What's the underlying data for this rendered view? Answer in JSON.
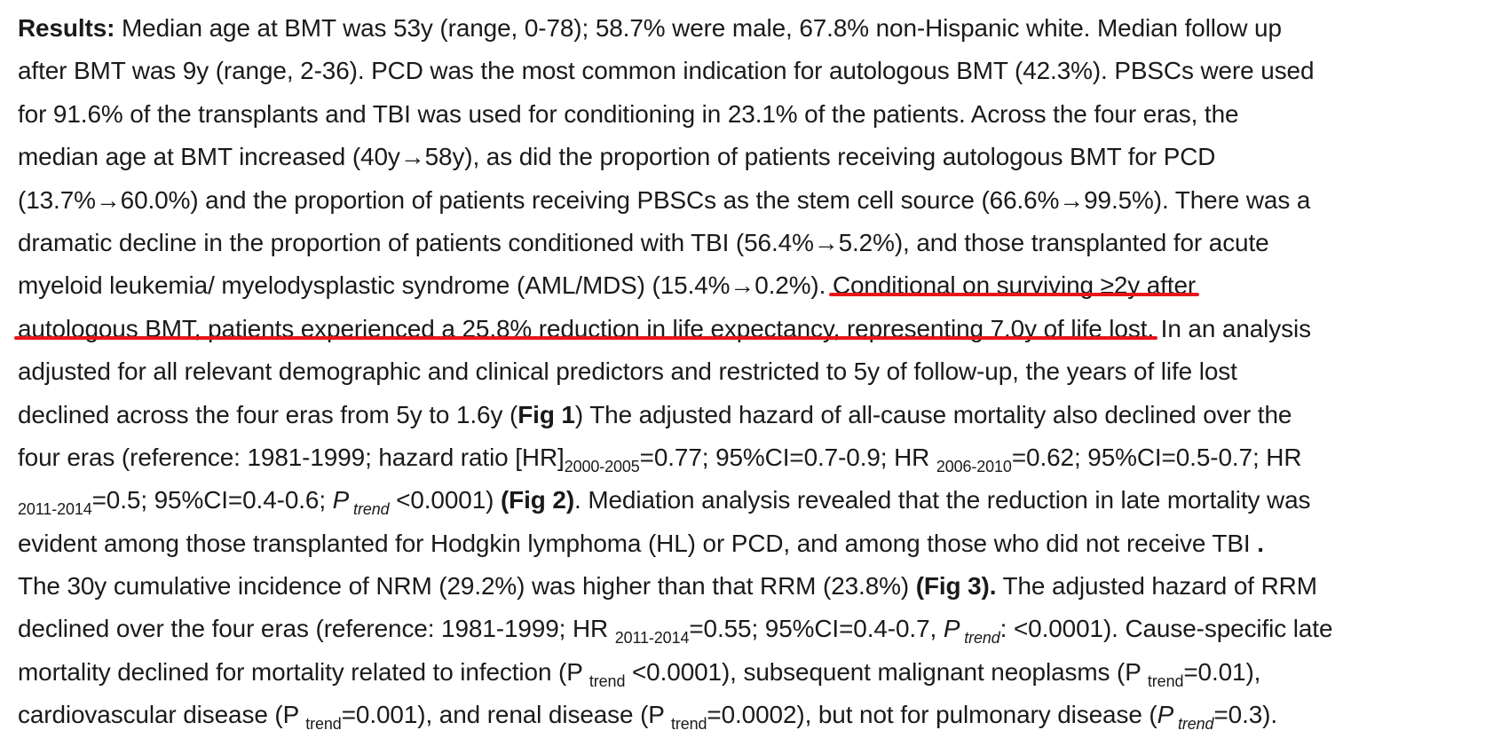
{
  "lines": [
    {
      "t1": "Results:",
      "t2": " Median age at BMT was 53y (range, 0-78); 58.7% were male, 67.8% non-Hispanic white. Median follow up"
    },
    {
      "t1": "after BMT was 9y (range, 2-36). PCD was the most common indication for autologous BMT (42.3%). PBSCs were used"
    },
    {
      "t1": "for 91.6% of the transplants and TBI was used for conditioning in 23.1% of the patients. Across the four eras, the"
    },
    {
      "t1": "median age at BMT increased (40y→58y), as did the proportion of patients receiving autologous BMT for PCD"
    },
    {
      "t1": "(13.7%→60.0%) and the proportion of patients receiving PBSCs as the stem cell source (66.6%→99.5%). There was a"
    },
    {
      "t1": "dramatic decline in the proportion of patients conditioned with TBI (56.4%→5.2%), and those transplanted for acute"
    },
    {
      "t1": "myeloid leukemia/ myelodysplastic syndrome (AML/MDS) (15.4%→0.2%). ",
      "t2": "Conditional on surviving ≥2y after"
    },
    {
      "t1": "autologous BMT, patients experienced a 25.8% reduction in life expectancy, representing 7.0y of life lost.",
      "t2": " In an analysis"
    },
    {
      "t1": "adjusted for all relevant demographic and clinical predictors and restricted to 5y of follow-up, the years of life lost"
    },
    {
      "t1": "declined across the four eras from 5y to 1.6y (",
      "t2": "Fig 1",
      "t3": ") The adjusted hazard of all-cause mortality also declined over the"
    },
    {
      "t1": "four eras (reference: 1981-1999; hazard ratio [HR]",
      "s1": "2000-2005",
      "t2": "=0.77; 95%CI=0.7-0.9; HR ",
      "s2": "2006-2010",
      "t3": "=0.62; 95%CI=0.5-0.7; HR"
    },
    {
      "s1": "2011-2014",
      "t1": "=0.5; 95%CI=0.4-0.6; ",
      "t2": "P",
      "s2": " trend",
      "t3": " <0.0001) ",
      "t4": "(Fig 2)",
      "t5": ". Mediation analysis revealed that the reduction in late mortality was"
    },
    {
      "t1": "evident among those transplanted for Hodgkin lymphoma (HL) or PCD, and among those who did not receive TBI ",
      "t2": "."
    },
    {
      "t1": "The 30y cumulative incidence of NRM (29.2%) was higher than that RRM (23.8%) ",
      "t2": "(Fig 3).",
      "t3": " The adjusted hazard of RRM"
    },
    {
      "t1": "declined over the four eras (reference: 1981-1999; HR ",
      "s1": "2011-2014",
      "t2": "=0.55; 95%CI=0.4-0.7, ",
      "t3": "P",
      "s2": " trend",
      "t4": ": <0.0001). Cause-specific late"
    },
    {
      "t1": "mortality declined for mortality related to infection (P ",
      "s1": "trend",
      "t2": " <0.0001), subsequent malignant neoplasms (P ",
      "s2": "trend",
      "t3": "=0.01),"
    },
    {
      "t1": "cardiovascular disease (P ",
      "s1": "trend",
      "t2": "=0.001), and renal disease (P ",
      "s2": "trend",
      "t3": "=0.0002), but not for pulmonary disease (",
      "t4": "P",
      "s3": " trend",
      "t5": "=0.3)."
    }
  ],
  "annotation": {
    "color": "#e8161b"
  }
}
